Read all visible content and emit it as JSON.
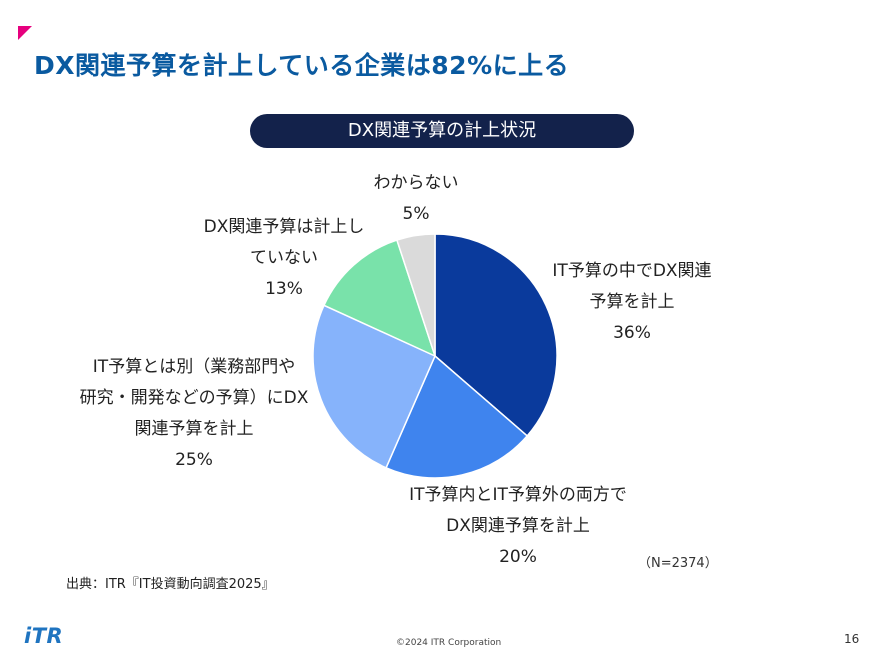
{
  "slide": {
    "title": "DX関連予算を計上している企業は82%に上る",
    "chart_heading": "DX関連予算の計上状況",
    "sample_note": "（N=2374）",
    "source": "出典：ITR『IT投資動向調査2025』",
    "logo": "iTR",
    "copyright": "©2024 ITR Corporation",
    "page_number": "16"
  },
  "labels": [
    {
      "lines": [
        "IT予算の中でDX関連",
        "予算を計上"
      ],
      "pct": "36%"
    },
    {
      "lines": [
        "IT予算内とIT予算外の両方で",
        "DX関連予算を計上"
      ],
      "pct": "20%"
    },
    {
      "lines": [
        "IT予算とは別（業務部門や",
        "研究・開発などの予算）にDX",
        "関連予算を計上"
      ],
      "pct": "25%"
    },
    {
      "lines": [
        "DX関連予算は計上し",
        "ていない"
      ],
      "pct": "13%"
    },
    {
      "lines": [
        "わからない"
      ],
      "pct": "5%"
    }
  ],
  "chart_data": {
    "type": "pie",
    "title": "DX関連予算の計上状況",
    "start_angle": "12 o'clock, clockwise",
    "slices": [
      {
        "label": "IT予算の中でDX関連予算を計上",
        "value": 36,
        "color": "#0a3a9c"
      },
      {
        "label": "IT予算内とIT予算外の両方でDX関連予算を計上",
        "value": 20,
        "color": "#3f84ee"
      },
      {
        "label": "IT予算とは別（業務部門や研究・開発などの予算）にDX関連予算を計上",
        "value": 25,
        "color": "#86b3fb"
      },
      {
        "label": "DX関連予算は計上していない",
        "value": 13,
        "color": "#79e2aa"
      },
      {
        "label": "わからない",
        "value": 5,
        "color": "#dadada"
      }
    ]
  }
}
